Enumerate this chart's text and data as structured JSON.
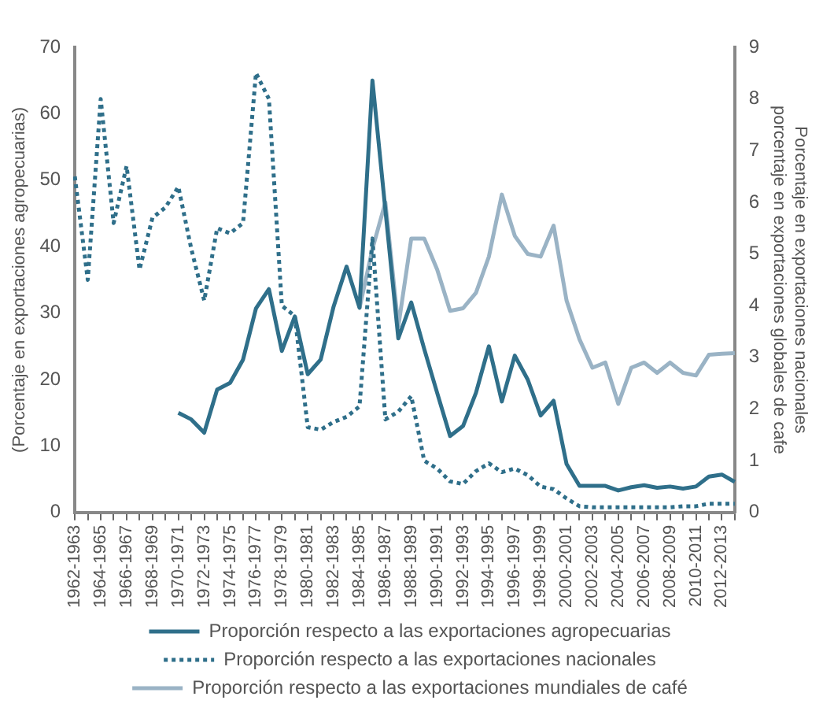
{
  "chart_data": {
    "type": "line",
    "categories": [
      "1962-1963",
      null,
      "1964-1965",
      null,
      "1966-1967",
      null,
      "1968-1969",
      null,
      "1970-1971",
      null,
      "1972-1973",
      null,
      "1974-1975",
      null,
      "1976-1977",
      null,
      "1978-1979",
      null,
      "1980-1981",
      null,
      "1982-1983",
      null,
      "1984-1985",
      null,
      "1986-1987",
      null,
      "1988-1989",
      null,
      "1990-1991",
      null,
      "1992-1993",
      null,
      "1994-1995",
      null,
      "1996-1997",
      null,
      "1998-1999",
      null,
      "2000-2001",
      null,
      "2002-2003",
      null,
      "2004-2005",
      null,
      "2006-2007",
      null,
      "2008-2009",
      null,
      "2010-2011",
      null,
      "2012-2013",
      null
    ],
    "series": [
      {
        "name": "Proporción respecto a las exportaciones agropecuarias",
        "color": "#2f6f8a",
        "line_style": "solid",
        "values": [
          null,
          null,
          null,
          null,
          null,
          null,
          null,
          null,
          15,
          14,
          12,
          18.5,
          19.5,
          23,
          30.7,
          33.6,
          24.3,
          29.5,
          20.8,
          23,
          31,
          37,
          30.8,
          65,
          45.5,
          26.2,
          31.6,
          24.6,
          18,
          11.5,
          13,
          18,
          25,
          16.7,
          23.6,
          20,
          14.6,
          16.8,
          7.3,
          4,
          4,
          4,
          3.3,
          3.8,
          4.1,
          3.7,
          3.9,
          3.6,
          3.9,
          5.4,
          5.7,
          4.6
        ]
      },
      {
        "name": "Proporción respecto a las exportaciones nacionales",
        "color": "#2f6f8a",
        "line_style": "dotted",
        "axis": "y2",
        "values": [
          6.5,
          4.5,
          8,
          5.6,
          6.7,
          4.7,
          5.7,
          5.9,
          6.3,
          5.1,
          4.1,
          5.5,
          5.4,
          5.6,
          8.5,
          8,
          4,
          3.8,
          1.65,
          1.6,
          1.75,
          1.85,
          2.05,
          5.3,
          1.8,
          1.95,
          2.25,
          1,
          0.85,
          0.6,
          0.55,
          0.8,
          0.95,
          0.78,
          0.85,
          0.72,
          0.5,
          0.45,
          0.27,
          0.12,
          0.1,
          0.1,
          0.1,
          0.1,
          0.1,
          0.1,
          0.1,
          0.12,
          0.12,
          0.17,
          0.17,
          0.17
        ]
      },
      {
        "name": "Proporción respecto a las exportaciones mundiales de café",
        "color": "#9ab3c5",
        "line_style": "solid",
        "axis": "y2",
        "values": [
          null,
          null,
          null,
          null,
          null,
          null,
          null,
          null,
          null,
          null,
          null,
          null,
          null,
          null,
          null,
          null,
          null,
          null,
          null,
          null,
          null,
          null,
          3.95,
          5.1,
          6,
          3.6,
          5.3,
          5.3,
          4.7,
          3.9,
          3.95,
          4.25,
          4.95,
          6.15,
          5.35,
          5,
          4.95,
          5.55,
          4.1,
          3.35,
          2.8,
          2.9,
          2.1,
          2.8,
          2.9,
          2.7,
          2.9,
          2.7,
          2.65,
          3.05,
          3.07,
          3.08
        ]
      }
    ],
    "ylabel": "(Porcentaje en exportaciones agropecuarias)",
    "y2label": "Porcentaje en exportaciones nacionales\nporcentaje en exportaciones globales de cafe",
    "ylim": [
      0,
      70
    ],
    "yticks": [
      0,
      10,
      20,
      30,
      40,
      50,
      60,
      70
    ],
    "y2lim": [
      0,
      9
    ],
    "y2ticks": [
      0,
      1,
      2,
      3,
      4,
      5,
      6,
      7,
      8,
      9
    ],
    "grid": false,
    "legend": "bottom",
    "marker": "none"
  }
}
